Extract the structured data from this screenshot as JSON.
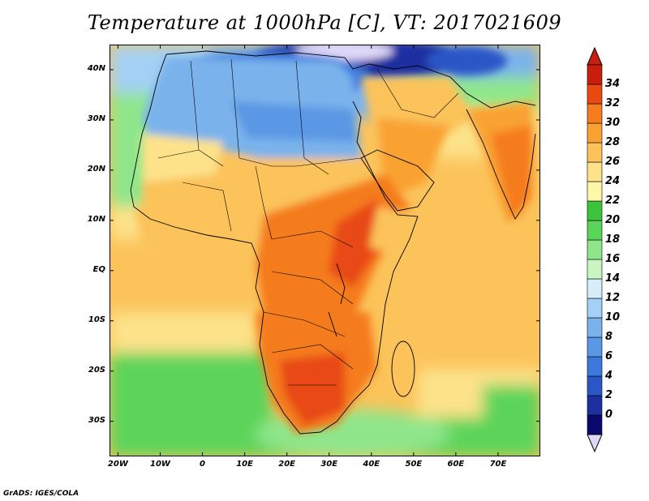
{
  "title": "Temperature at 1000hPa [C], VT: 2017021609",
  "footer": "GrADS: IGES/COLA",
  "map": {
    "lon_range": [
      -22,
      80
    ],
    "lat_range": [
      -37,
      45
    ],
    "x_ticks": [
      {
        "lon": -20,
        "label": "20W"
      },
      {
        "lon": -10,
        "label": "10W"
      },
      {
        "lon": 0,
        "label": "0"
      },
      {
        "lon": 10,
        "label": "10E"
      },
      {
        "lon": 20,
        "label": "20E"
      },
      {
        "lon": 30,
        "label": "30E"
      },
      {
        "lon": 40,
        "label": "40E"
      },
      {
        "lon": 50,
        "label": "50E"
      },
      {
        "lon": 60,
        "label": "60E"
      },
      {
        "lon": 70,
        "label": "70E"
      }
    ],
    "y_ticks": [
      {
        "lat": 40,
        "label": "40N"
      },
      {
        "lat": 30,
        "label": "30N"
      },
      {
        "lat": 20,
        "label": "20N"
      },
      {
        "lat": 10,
        "label": "10N"
      },
      {
        "lat": 0,
        "label": "EQ"
      },
      {
        "lat": -10,
        "label": "10S"
      },
      {
        "lat": -20,
        "label": "20S"
      },
      {
        "lat": -30,
        "label": "30S"
      }
    ]
  },
  "legend": {
    "labels": [
      "0",
      "2",
      "4",
      "6",
      "8",
      "10",
      "12",
      "14",
      "16",
      "18",
      "20",
      "22",
      "24",
      "26",
      "28",
      "30",
      "32",
      "34"
    ],
    "colors": [
      "#0a0a6e",
      "#1e2fa0",
      "#2a56c6",
      "#3d79dc",
      "#5a97e4",
      "#7ab2ec",
      "#a3d0f4",
      "#d6eefa",
      "#c9f5c2",
      "#8fe68a",
      "#5bd45a",
      "#3cc43c",
      "#fff7a8",
      "#fde28a",
      "#fbc35a",
      "#f9a233",
      "#f57c1f",
      "#e84a12",
      "#c81e0c"
    ],
    "under_color": "#e0d8f8",
    "over_color": "#c81e0c"
  }
}
